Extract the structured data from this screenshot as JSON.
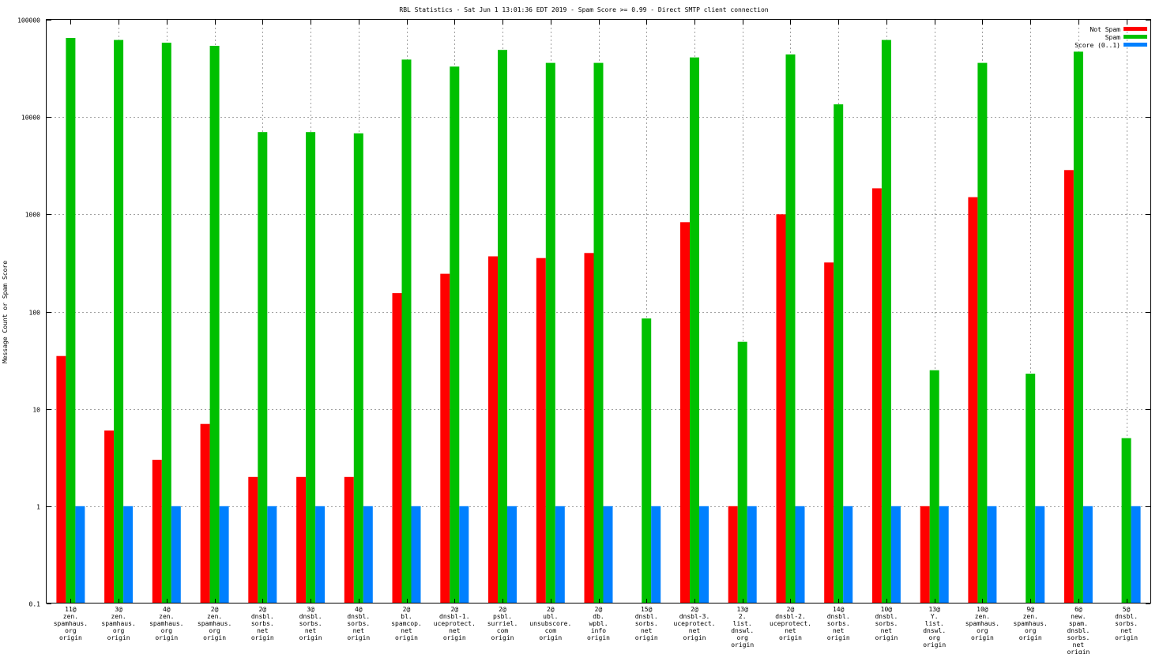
{
  "chart_data": {
    "type": "bar",
    "title": "RBL Statistics - Sat Jun  1 13:01:36 EDT 2019 - Spam Score >= 0.99 - Direct SMTP client connection",
    "xlabel": "",
    "ylabel": "Message Count or Spam Score",
    "yscale": "log",
    "ylim": [
      0.1,
      100000
    ],
    "grid": true,
    "legend_position": "top-right",
    "y_ticks": [
      "0.1",
      "1",
      "10",
      "100",
      "1000",
      "10000",
      "100000"
    ],
    "categories": [
      [
        "11@",
        "zen.",
        "spamhaus.",
        "org",
        "origin"
      ],
      [
        "3@",
        "zen.",
        "spamhaus.",
        "org",
        "origin"
      ],
      [
        "4@",
        "zen.",
        "spamhaus.",
        "org",
        "origin"
      ],
      [
        "2@",
        "zen.",
        "spamhaus.",
        "org",
        "origin"
      ],
      [
        "2@",
        "dnsbl.",
        "sorbs.",
        "net",
        "origin"
      ],
      [
        "3@",
        "dnsbl.",
        "sorbs.",
        "net",
        "origin"
      ],
      [
        "4@",
        "dnsbl.",
        "sorbs.",
        "net",
        "origin"
      ],
      [
        "2@",
        "bl.",
        "spamcop.",
        "net",
        "origin"
      ],
      [
        "2@",
        "dnsbl-1.",
        "uceprotect.",
        "net",
        "origin"
      ],
      [
        "2@",
        "psbl.",
        "surriel.",
        "com",
        "origin"
      ],
      [
        "2@",
        "ubl.",
        "unsubscore.",
        "com",
        "origin"
      ],
      [
        "2@",
        "db.",
        "wpbl.",
        "info",
        "origin"
      ],
      [
        "15@",
        "dnsbl.",
        "sorbs.",
        "net",
        "origin"
      ],
      [
        "2@",
        "dnsbl-3.",
        "uceprotect.",
        "net",
        "origin"
      ],
      [
        "13@",
        "2.",
        "list.",
        "dnswl.",
        "org",
        "origin"
      ],
      [
        "2@",
        "dnsbl-2.",
        "uceprotect.",
        "net",
        "origin"
      ],
      [
        "14@",
        "dnsbl.",
        "sorbs.",
        "net",
        "origin"
      ],
      [
        "10@",
        "dnsbl.",
        "sorbs.",
        "net",
        "origin"
      ],
      [
        "13@",
        "Y.",
        "list.",
        "dnswl.",
        "org",
        "origin"
      ],
      [
        "10@",
        "zen.",
        "spamhaus.",
        "org",
        "origin"
      ],
      [
        "9@",
        "zen.",
        "spamhaus.",
        "org",
        "origin"
      ],
      [
        "6@",
        "new.",
        "spam.",
        "dnsbl.",
        "sorbs.",
        "net",
        "origin"
      ],
      [
        "5@",
        "dnsbl.",
        "sorbs.",
        "net",
        "origin"
      ]
    ],
    "series": [
      {
        "name": "Not Spam",
        "color": "#ff0000",
        "values": [
          35,
          6,
          3,
          7,
          2,
          2,
          2,
          155,
          245,
          370,
          355,
          400,
          null,
          830,
          1,
          1000,
          320,
          1850,
          1,
          1500,
          null,
          2850,
          null
        ]
      },
      {
        "name": "Spam",
        "color": "#00c000",
        "values": [
          65000,
          62000,
          58000,
          54000,
          7000,
          7000,
          6800,
          39000,
          33000,
          49000,
          36000,
          36000,
          85,
          41000,
          49,
          44000,
          13500,
          62000,
          25,
          36000,
          23,
          47000,
          5
        ]
      },
      {
        "name": "Score (0..1)",
        "color": "#0080ff",
        "values": [
          1,
          1,
          1,
          1,
          1,
          1,
          1,
          1,
          1,
          1,
          1,
          1,
          1,
          1,
          1,
          1,
          1,
          1,
          1,
          1,
          1,
          1,
          1
        ]
      }
    ]
  }
}
